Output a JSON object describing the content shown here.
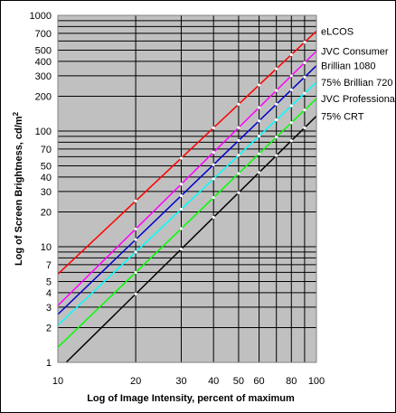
{
  "chart_data": {
    "type": "line",
    "xlabel": "Log of Image Intensity, percent of maximum",
    "ylabel": "Log of Screen Brightness, cd/m",
    "ylabel_sup": "2",
    "xscale": "log",
    "yscale": "log",
    "xlim": [
      10,
      100
    ],
    "ylim": [
      1,
      1000
    ],
    "grid": true,
    "legend": "right",
    "background": "#c0c0c0",
    "x_ticks": [
      10,
      20,
      30,
      40,
      50,
      60,
      70,
      80,
      90,
      100
    ],
    "x_tick_labels": [
      "10",
      "20",
      "30",
      "40",
      "50",
      "60",
      "",
      "80",
      "",
      "100"
    ],
    "y_ticks": [
      1,
      2,
      3,
      4,
      5,
      7,
      10,
      20,
      30,
      40,
      50,
      70,
      100,
      200,
      300,
      400,
      500,
      700,
      1000
    ],
    "y_tick_labels": [
      "1",
      "2",
      "3",
      "4",
      "5",
      "7",
      "10",
      "20",
      "30",
      "40",
      "50",
      "70",
      "100",
      "200",
      "300",
      "400",
      "500",
      "700",
      "1000"
    ],
    "marker_x": [
      20,
      30,
      40,
      50,
      60,
      70,
      80,
      90
    ],
    "series": [
      {
        "name": "eLCOS",
        "color": "#ff0000",
        "y10": 5.8,
        "gamma": 2.1
      },
      {
        "name": "JVC Consumer",
        "color": "#ff00ff",
        "y10": 3.1,
        "gamma": 2.2
      },
      {
        "name": "Brillian 1080",
        "color": "#0000cc",
        "y10": 2.6,
        "gamma": 2.15
      },
      {
        "name": "75% Brillian 720",
        "color": "#00ffff",
        "y10": 2.1,
        "gamma": 2.1
      },
      {
        "name": "JVC Professional",
        "color": "#00ff00",
        "y10": 1.35,
        "gamma": 2.15
      },
      {
        "name": "75% CRT",
        "color": "#000000",
        "y10": 0.85,
        "gamma": 2.2
      }
    ]
  }
}
